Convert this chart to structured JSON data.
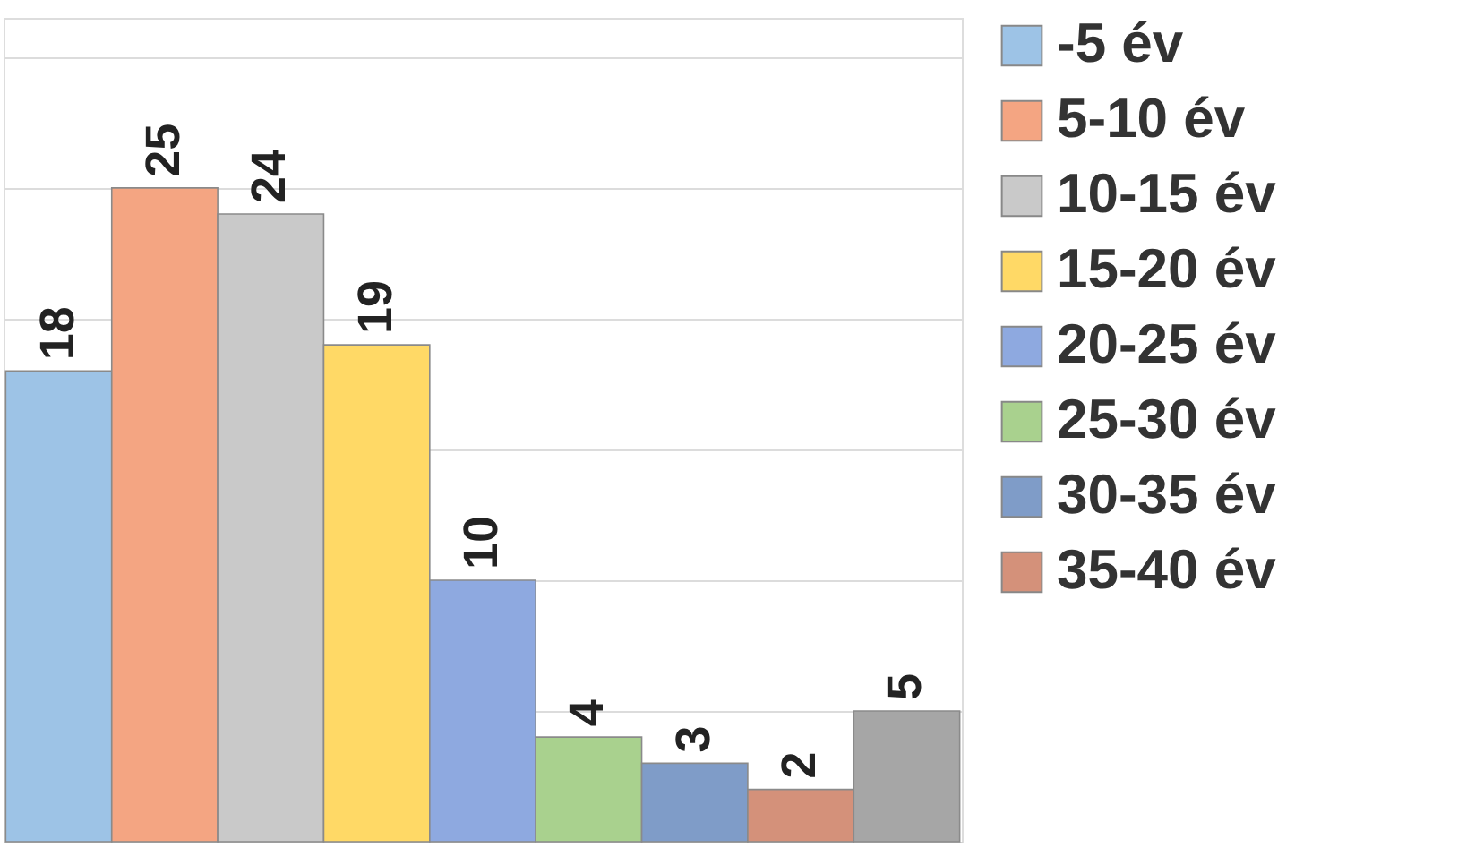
{
  "chart_data": {
    "type": "bar",
    "stacked": true,
    "categories": [
      null,
      null,
      null,
      null,
      null,
      null,
      null,
      null,
      null
    ],
    "series": [
      {
        "name": "-5 év",
        "color": "#9dc3e6",
        "values": [
          18,
          null,
          null,
          null,
          null,
          null,
          null,
          null,
          null
        ]
      },
      {
        "name": "5-10 év",
        "color": "#f4a582",
        "values": [
          null,
          25,
          null,
          null,
          null,
          null,
          null,
          null,
          null
        ]
      },
      {
        "name": "10-15 év",
        "color": "#c9c9c9",
        "values": [
          null,
          null,
          24,
          null,
          null,
          null,
          null,
          null,
          null
        ]
      },
      {
        "name": "15-20 év",
        "color": "#ffd966",
        "values": [
          null,
          null,
          null,
          19,
          null,
          null,
          null,
          null,
          null
        ]
      },
      {
        "name": "20-25 év",
        "color": "#8ea9e0",
        "values": [
          null,
          null,
          null,
          null,
          10,
          null,
          null,
          null,
          null
        ]
      },
      {
        "name": "25-30 év",
        "color": "#a9d18e",
        "values": [
          null,
          null,
          null,
          null,
          null,
          4,
          null,
          null,
          null
        ]
      },
      {
        "name": "30-35 év",
        "color": "#7f9cc8",
        "values": [
          null,
          null,
          null,
          null,
          null,
          null,
          3,
          null,
          null
        ]
      },
      {
        "name": "35-40 év",
        "color": "#d4917a",
        "values": [
          null,
          null,
          null,
          null,
          null,
          null,
          null,
          2,
          null
        ]
      },
      {
        "color": "#a6a6a6",
        "values": [
          null,
          null,
          null,
          null,
          null,
          null,
          null,
          null,
          5
        ]
      }
    ],
    "ylim": [
      0,
      31.5
    ],
    "yticks": [
      {
        "value": 0,
        "label": null
      },
      {
        "value": 5,
        "label": null
      },
      {
        "value": 10,
        "label": null
      },
      {
        "value": 15,
        "label": null
      },
      {
        "value": 20,
        "label": null
      },
      {
        "value": 25,
        "label": null
      },
      {
        "value": 30,
        "label": null
      }
    ],
    "grid": "y",
    "legend": "right",
    "tick_labels": false,
    "data_labels": true
  }
}
